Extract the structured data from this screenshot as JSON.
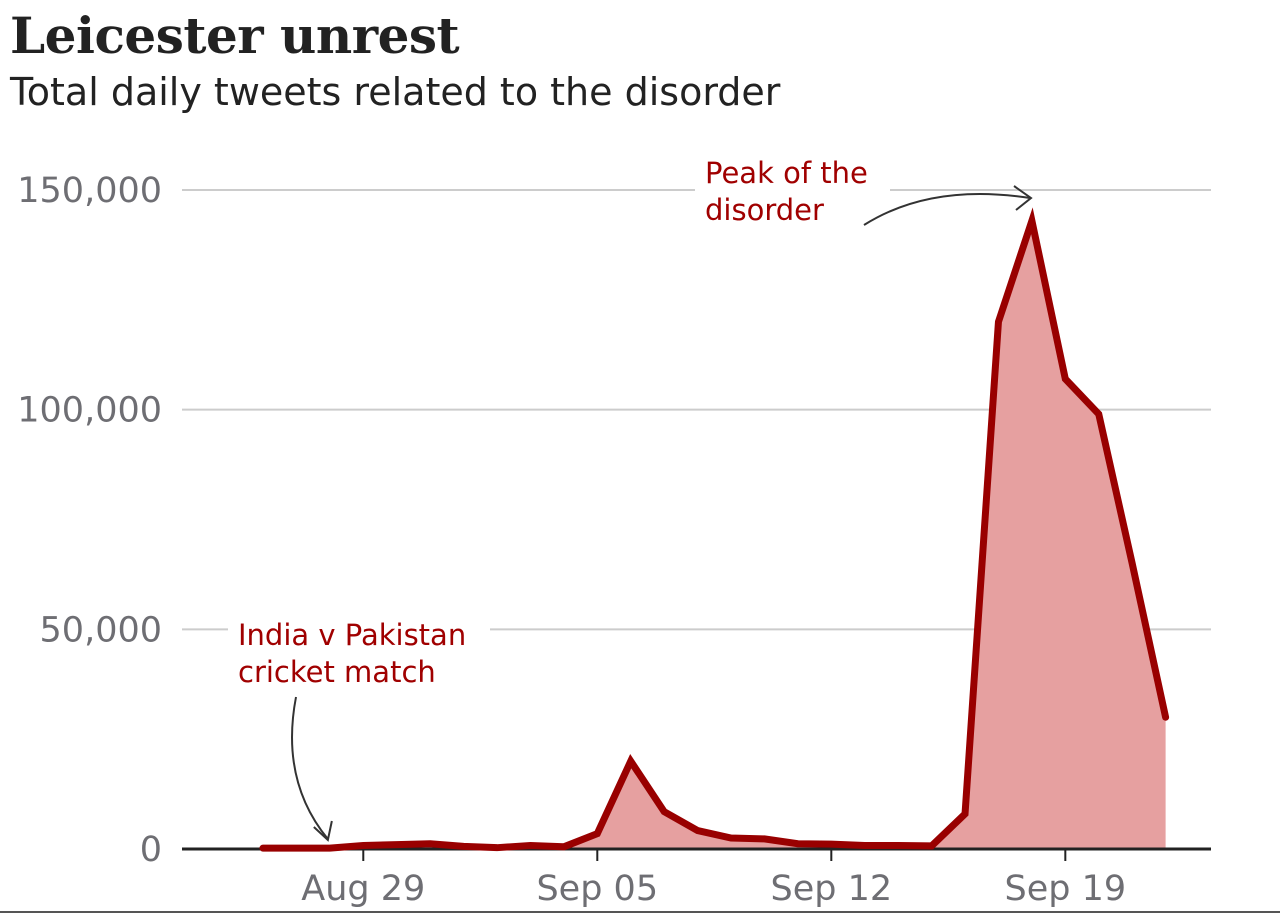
{
  "chart_data": {
    "type": "area",
    "title": "Leicester unrest",
    "subtitle": "Total daily tweets related to the disorder",
    "xlabel": "",
    "ylabel": "",
    "x": [
      "Aug 26",
      "Aug 27",
      "Aug 28",
      "Aug 29",
      "Aug 30",
      "Aug 31",
      "Sep 01",
      "Sep 02",
      "Sep 03",
      "Sep 04",
      "Sep 05",
      "Sep 06",
      "Sep 07",
      "Sep 08",
      "Sep 09",
      "Sep 10",
      "Sep 11",
      "Sep 12",
      "Sep 13",
      "Sep 14",
      "Sep 15",
      "Sep 16",
      "Sep 17",
      "Sep 18",
      "Sep 19",
      "Sep 20",
      "Sep 21",
      "Sep 22"
    ],
    "values": [
      200,
      200,
      200,
      800,
      1000,
      1200,
      600,
      300,
      800,
      500,
      3500,
      20000,
      8500,
      4200,
      2500,
      2300,
      1200,
      1100,
      800,
      800,
      700,
      8000,
      120000,
      143000,
      107000,
      99000,
      65000,
      30000
    ],
    "ylim": [
      0,
      150000
    ],
    "yticks": [
      0,
      50000,
      100000,
      150000
    ],
    "ytick_labels": [
      "0",
      "50,000",
      "100,000",
      "150,000"
    ],
    "xticks": [
      "Aug 29",
      "Sep 05",
      "Sep 12",
      "Sep 19"
    ],
    "grid": true,
    "colors": {
      "line": "#990000",
      "fill": "#e6a0a0",
      "annotation": "#a00000",
      "grid": "#cccccc",
      "axis": "#222222"
    },
    "annotations": [
      {
        "lines": [
          "India v Pakistan",
          "cricket match"
        ],
        "x": "Aug 28"
      },
      {
        "lines": [
          "Peak of the",
          "disorder"
        ],
        "x": "Sep 18"
      }
    ]
  }
}
